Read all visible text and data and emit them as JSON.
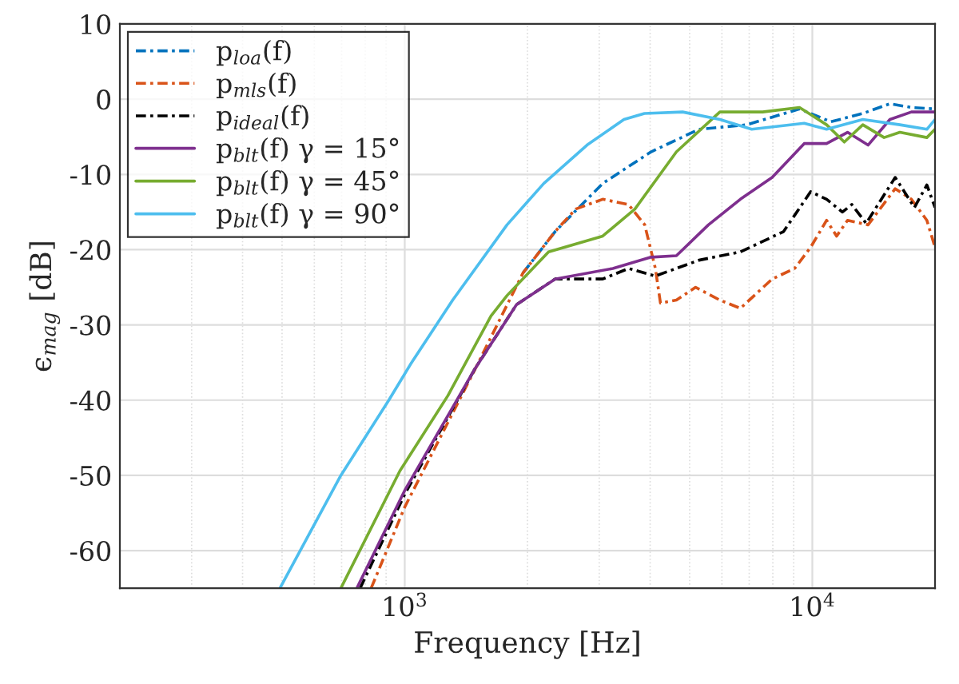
{
  "chart_data": {
    "type": "line",
    "xlabel": "Frequency [Hz]",
    "ylabel": "ϵ$_{mag}$ [dB]",
    "log": "x",
    "xlim": [
      200,
      20000
    ],
    "xticks": [
      {
        "value": 1000,
        "label": "10$^{3}$"
      },
      {
        "value": 10000,
        "label": "10$^{4}$"
      }
    ],
    "ylim": [
      -65,
      10
    ],
    "yticks": [
      10,
      0,
      -10,
      -20,
      -30,
      -40,
      -50,
      -60
    ],
    "grid": true,
    "legend": "top left",
    "series": [
      {
        "name": "p$_{loa}$(f)",
        "color": "#0072bd",
        "line_style": "dashed",
        "x": [
          1950,
          2338,
          3060,
          4020,
          5270,
          6900,
          9300,
          11100,
          13300,
          15500,
          17500,
          20000
        ],
        "values": [
          -23.1,
          -17.6,
          -11.2,
          -7.0,
          -4.0,
          -3.4,
          -1.3,
          -3.0,
          -1.9,
          -0.6,
          -1.1,
          -1.3
        ]
      },
      {
        "name": "p$_{mls}$(f)",
        "color": "#d95319",
        "line_style": "dashed",
        "x": [
          827,
          1000,
          1500,
          1950,
          2338,
          2627,
          3060,
          3540,
          3880,
          4120,
          4240,
          4640,
          5170,
          5930,
          6660,
          7970,
          9050,
          9900,
          10840,
          11470,
          12200,
          13700,
          15970,
          17500,
          19100,
          20000
        ],
        "values": [
          -65,
          -54.2,
          -35.5,
          -23.1,
          -17.6,
          -14.6,
          -13.3,
          -14.0,
          -16.7,
          -22.5,
          -27.1,
          -26.7,
          -25.0,
          -26.7,
          -27.8,
          -23.9,
          -22.5,
          -19.7,
          -16.1,
          -18.2,
          -16.1,
          -16.7,
          -11.9,
          -13.3,
          -16.1,
          -19.7
        ]
      },
      {
        "name": "p$_{ideal}$(f)",
        "color": "#000000",
        "line_style": "dashed",
        "x": [
          777,
          1000,
          1488,
          1880,
          2338,
          3060,
          3540,
          4120,
          5270,
          6660,
          8500,
          9900,
          10840,
          11850,
          12500,
          13550,
          15970,
          17800,
          19100,
          20000
        ],
        "values": [
          -65,
          -52.5,
          -35.8,
          -27.3,
          -23.9,
          -23.9,
          -22.5,
          -23.5,
          -21.4,
          -20.3,
          -17.6,
          -12.3,
          -13.3,
          -15.0,
          -14.0,
          -16.5,
          -10.4,
          -14.4,
          -11.4,
          -14.4
        ]
      },
      {
        "name": "p$_{blt}$(f) γ = 15°",
        "color": "#7e2f8e",
        "line_style": "solid",
        "x": [
          763,
          1000,
          1488,
          1880,
          2338,
          3240,
          4020,
          4640,
          5560,
          6660,
          7970,
          9550,
          10840,
          12200,
          13700,
          15500,
          17500,
          20000
        ],
        "values": [
          -65,
          -52,
          -35.8,
          -27.3,
          -23.9,
          -22.5,
          -21.0,
          -20.8,
          -16.7,
          -13.3,
          -10.4,
          -5.9,
          -5.9,
          -4.4,
          -6.1,
          -2.7,
          -1.7,
          -1.7
        ]
      },
      {
        "name": "p$_{blt}$(f) γ = 45°",
        "color": "#77ac30",
        "line_style": "solid",
        "x": [
          697,
          973,
          1276,
          1628,
          1782,
          2253,
          3060,
          3670,
          4640,
          5930,
          7550,
          9300,
          10840,
          11980,
          13300,
          15000,
          16400,
          19100,
          20000
        ],
        "values": [
          -65,
          -49.4,
          -39.4,
          -28.8,
          -26.1,
          -20.3,
          -18.2,
          -14.6,
          -7.0,
          -1.7,
          -1.7,
          -1.1,
          -3.4,
          -5.7,
          -3.4,
          -5.1,
          -4.4,
          -5.1,
          -4.0
        ]
      },
      {
        "name": "p$_{blt}$(f) γ = 90°",
        "color": "#4dbeee",
        "line_style": "solid",
        "x": [
          494,
          697,
          914,
          1034,
          1311,
          1782,
          2193,
          2800,
          3450,
          3873,
          4806,
          5933,
          7100,
          9550,
          10840,
          13300,
          16400,
          19100,
          20000
        ],
        "values": [
          -65,
          -50,
          -40,
          -35.2,
          -26.7,
          -16.7,
          -11.2,
          -6.1,
          -2.7,
          -1.9,
          -1.7,
          -2.7,
          -4.0,
          -3.2,
          -4.0,
          -2.7,
          -3.4,
          -4.0,
          -2.7
        ]
      }
    ]
  }
}
